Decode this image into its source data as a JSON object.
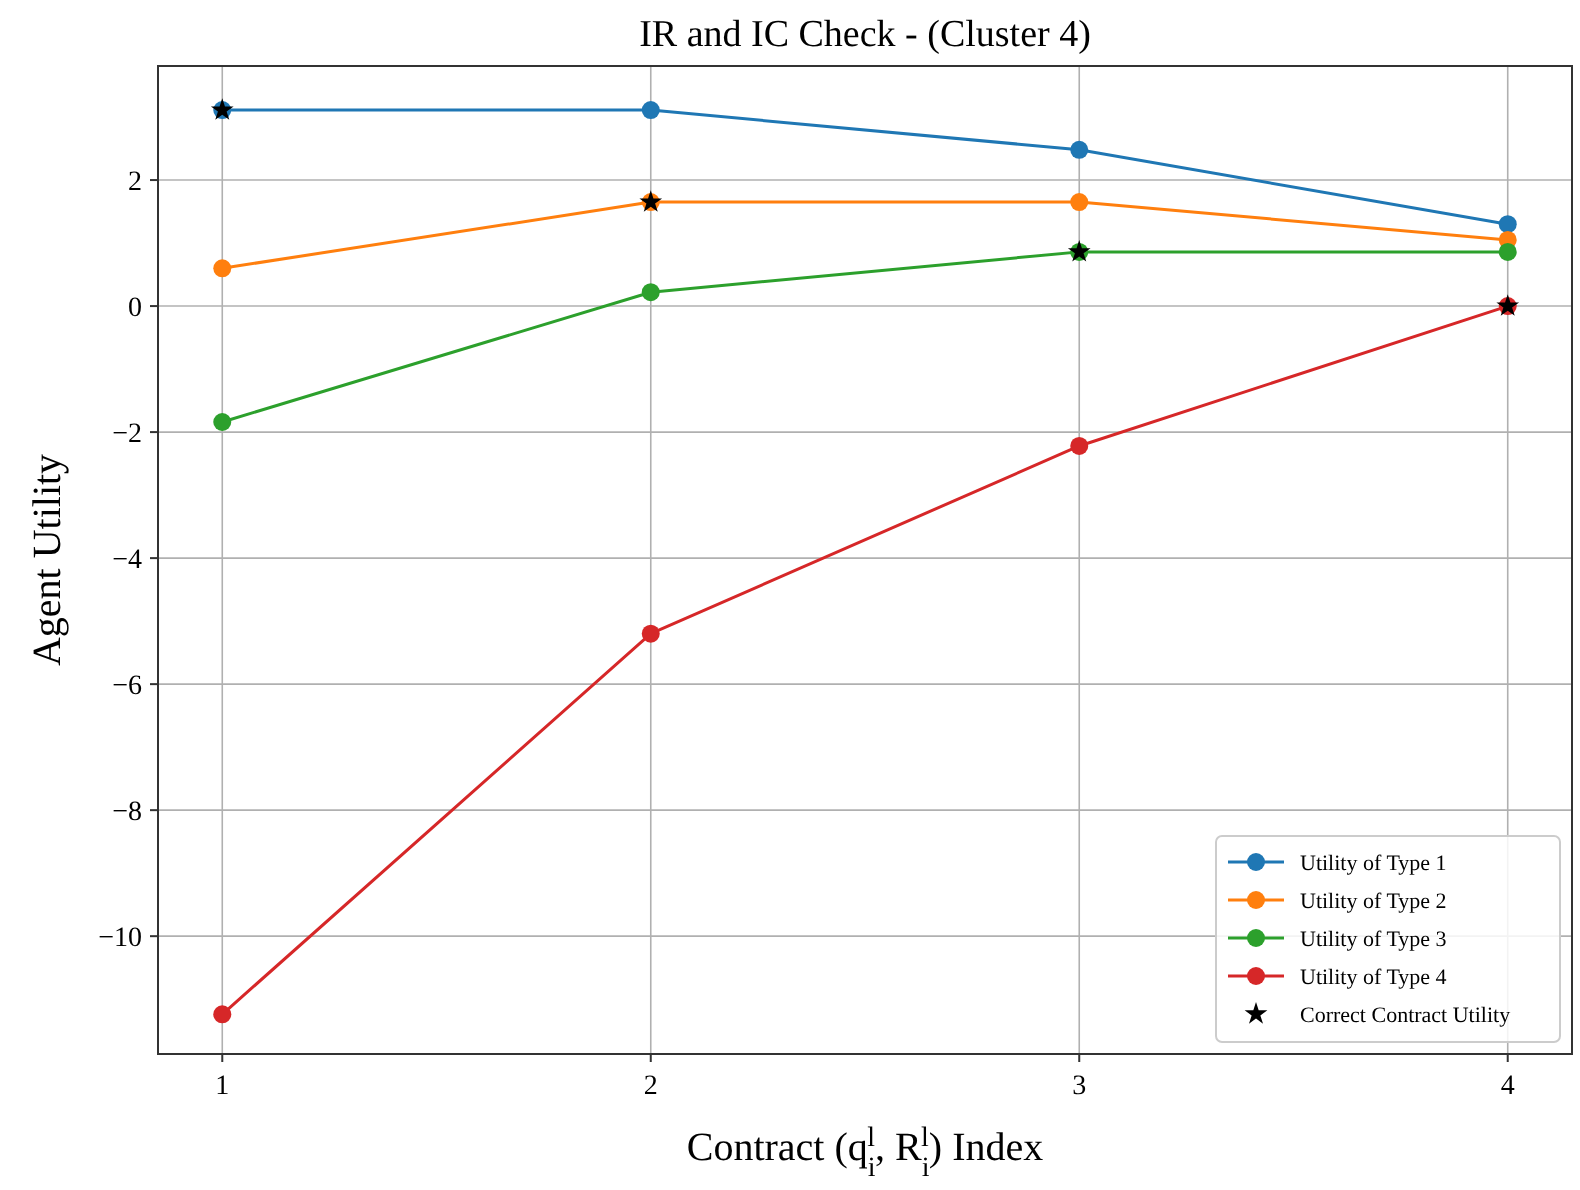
{
  "chart_data": {
    "type": "line",
    "title": "IR and IC Check - (Cluster 4)",
    "xlabel": "Contract (q$_{i}$$^{l}$, R$_{i}$$^{l}$) Index",
    "ylabel": "Agent Utility",
    "x": [
      1,
      2,
      3,
      4
    ],
    "xlim": [
      0.85,
      4.15
    ],
    "xticks": [
      1,
      2,
      3,
      4
    ],
    "ylim": [
      -11.87,
      3.81
    ],
    "yticks": [
      -10,
      -8,
      -6,
      -4,
      -2,
      0,
      2
    ],
    "grid": true,
    "legend": "bottom right",
    "marker": "circle",
    "line_style": "solid",
    "series": [
      {
        "name": "Utility of Type 1",
        "color": "#1f77b4",
        "values": [
          3.11,
          3.11,
          2.48,
          1.3
        ]
      },
      {
        "name": "Utility of Type 2",
        "color": "#ff7f0e",
        "values": [
          0.6,
          1.65,
          1.65,
          1.05
        ]
      },
      {
        "name": "Utility of Type 3",
        "color": "#2ca02c",
        "values": [
          -1.84,
          0.22,
          0.86,
          0.86
        ]
      },
      {
        "name": "Utility of Type 4",
        "color": "#d62728",
        "values": [
          -11.24,
          -5.2,
          -2.22,
          0
        ]
      },
      {
        "name": "Correct Contract Utility",
        "type": "scatter",
        "marker": "star",
        "color": "#000000",
        "values": [
          3.11,
          1.65,
          0.86,
          0
        ]
      }
    ]
  }
}
